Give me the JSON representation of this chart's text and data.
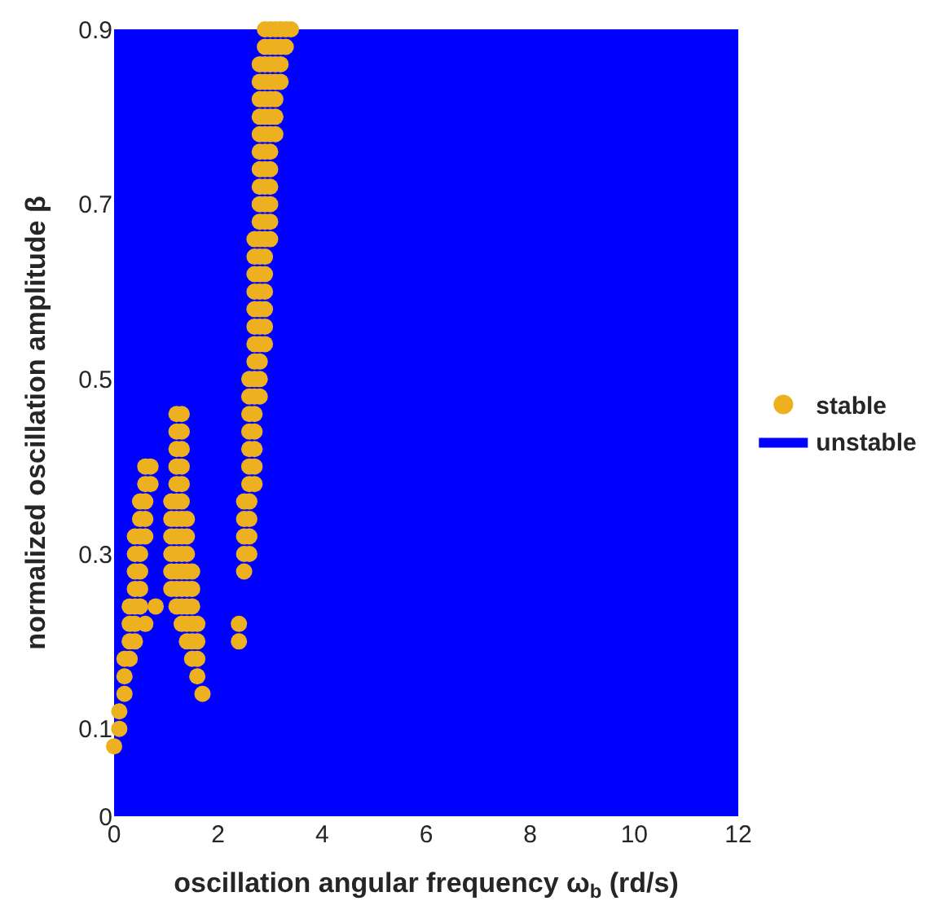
{
  "chart_data": {
    "type": "scatter",
    "xlabel": "oscillation angular frequency ω$_{b}$ (rd/s)",
    "ylabel": "normalized oscillation amplitude β",
    "series": [
      {
        "name": "unstable",
        "type": "area",
        "color": "#0000ff",
        "x": [
          0,
          12
        ],
        "values": [
          0.9,
          0.9
        ]
      },
      {
        "name": "stable",
        "color": "#edb120",
        "x": [
          2.9,
          3,
          3.1,
          3.2,
          3.3,
          3.4,
          2.9,
          3,
          3.1,
          3.2,
          3.3,
          2.8,
          2.9,
          3,
          3.1,
          3.2,
          2.8,
          2.9,
          3,
          3.1,
          3.2,
          2.8,
          2.9,
          3,
          3.1,
          2.8,
          2.9,
          3,
          3.1,
          2.8,
          2.9,
          3,
          3.1,
          2.8,
          2.9,
          3,
          2.8,
          2.9,
          3,
          2.8,
          2.9,
          3,
          2.8,
          2.9,
          3,
          2.8,
          2.9,
          3,
          2.7,
          2.8,
          2.9,
          3,
          2.7,
          2.8,
          2.9,
          2.7,
          2.8,
          2.9,
          2.7,
          2.8,
          2.9,
          2.7,
          2.8,
          2.9,
          2.7,
          2.8,
          2.9,
          2.7,
          2.8,
          2.9,
          2.7,
          2.8,
          2.6,
          2.7,
          2.8,
          2.6,
          2.7,
          2.8,
          1.2,
          1.3,
          2.6,
          2.7,
          1.2,
          1.3,
          2.6,
          2.7,
          1.2,
          1.3,
          2.6,
          2.7,
          0.6,
          0.7,
          1.2,
          1.3,
          2.6,
          2.7,
          0.6,
          0.7,
          1.2,
          1.3,
          2.6,
          2.7,
          0.5,
          0.6,
          1.1,
          1.2,
          1.3,
          2.5,
          2.6,
          0.5,
          0.6,
          1.1,
          1.2,
          1.3,
          1.4,
          2.5,
          2.6,
          0.4,
          0.5,
          0.6,
          1.1,
          1.2,
          1.3,
          1.4,
          2.5,
          2.6,
          0.4,
          0.5,
          1.1,
          1.2,
          1.3,
          1.4,
          2.5,
          2.6,
          0.4,
          0.5,
          1.1,
          1.2,
          1.3,
          1.4,
          1.5,
          2.5,
          0.4,
          0.5,
          1.1,
          1.2,
          1.3,
          1.4,
          1.5,
          0.3,
          0.4,
          0.5,
          0.8,
          1.2,
          1.3,
          1.4,
          1.5,
          0.3,
          0.4,
          0.6,
          1.3,
          1.4,
          1.5,
          1.6,
          2.4,
          0.3,
          0.4,
          1.4,
          1.5,
          1.6,
          2.4,
          0.2,
          0.3,
          1.5,
          1.6,
          0.2,
          1.6,
          0.2,
          1.7,
          0.1,
          0.1,
          0
        ],
        "values": [
          0.9,
          0.9,
          0.9,
          0.9,
          0.9,
          0.9,
          0.88,
          0.88,
          0.88,
          0.88,
          0.88,
          0.86,
          0.86,
          0.86,
          0.86,
          0.86,
          0.84,
          0.84,
          0.84,
          0.84,
          0.84,
          0.82,
          0.82,
          0.82,
          0.82,
          0.8,
          0.8,
          0.8,
          0.8,
          0.78,
          0.78,
          0.78,
          0.78,
          0.76,
          0.76,
          0.76,
          0.74,
          0.74,
          0.74,
          0.72,
          0.72,
          0.72,
          0.7,
          0.7,
          0.7,
          0.68,
          0.68,
          0.68,
          0.66,
          0.66,
          0.66,
          0.66,
          0.64,
          0.64,
          0.64,
          0.62,
          0.62,
          0.62,
          0.6,
          0.6,
          0.6,
          0.58,
          0.58,
          0.58,
          0.56,
          0.56,
          0.56,
          0.54,
          0.54,
          0.54,
          0.52,
          0.52,
          0.5,
          0.5,
          0.5,
          0.48,
          0.48,
          0.48,
          0.46,
          0.46,
          0.46,
          0.46,
          0.44,
          0.44,
          0.44,
          0.44,
          0.42,
          0.42,
          0.42,
          0.42,
          0.4,
          0.4,
          0.4,
          0.4,
          0.4,
          0.4,
          0.38,
          0.38,
          0.38,
          0.38,
          0.38,
          0.38,
          0.36,
          0.36,
          0.36,
          0.36,
          0.36,
          0.36,
          0.36,
          0.34,
          0.34,
          0.34,
          0.34,
          0.34,
          0.34,
          0.34,
          0.34,
          0.32,
          0.32,
          0.32,
          0.32,
          0.32,
          0.32,
          0.32,
          0.32,
          0.32,
          0.3,
          0.3,
          0.3,
          0.3,
          0.3,
          0.3,
          0.3,
          0.3,
          0.28,
          0.28,
          0.28,
          0.28,
          0.28,
          0.28,
          0.28,
          0.28,
          0.26,
          0.26,
          0.26,
          0.26,
          0.26,
          0.26,
          0.26,
          0.24,
          0.24,
          0.24,
          0.24,
          0.24,
          0.24,
          0.24,
          0.24,
          0.22,
          0.22,
          0.22,
          0.22,
          0.22,
          0.22,
          0.22,
          0.22,
          0.2,
          0.2,
          0.2,
          0.2,
          0.2,
          0.2,
          0.18,
          0.18,
          0.18,
          0.18,
          0.16,
          0.16,
          0.14,
          0.14,
          0.12,
          0.1,
          0.08
        ]
      }
    ],
    "xlim": [
      0,
      12
    ],
    "ylim": [
      0,
      0.9
    ],
    "xticks": [
      0,
      2,
      4,
      6,
      8,
      10,
      12
    ],
    "yticks": [
      0,
      0.1,
      0.3,
      0.5,
      0.7,
      0.9
    ],
    "legend": "right"
  }
}
